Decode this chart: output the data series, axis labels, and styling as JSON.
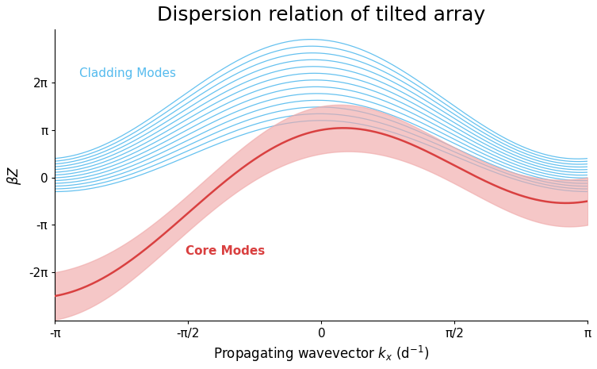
{
  "title": "Dispersion relation of tilted array",
  "xlabel": "Propagating wavevector $k_x$ (d$^{-1}$)",
  "ylabel": "$\\beta Z$",
  "xlim": [
    -3.14159265,
    3.14159265
  ],
  "ylim": [
    -9.5,
    9.8
  ],
  "yticks": [
    -6.2831853,
    -3.14159265,
    0,
    3.14159265,
    6.2831853
  ],
  "ytick_labels": [
    "-2π",
    "-π",
    "0",
    "π",
    "2π"
  ],
  "xticks": [
    -3.14159265,
    -1.5707963,
    0,
    1.5707963,
    3.14159265
  ],
  "xtick_labels": [
    "-π",
    "-π/2",
    "0",
    "π/2",
    "π"
  ],
  "core_color": "#d94040",
  "core_fill_color": "#f0aaaa",
  "cladding_color": "#55bbee",
  "background_color": "#ffffff",
  "title_fontsize": 18,
  "label_fontsize": 12,
  "tick_fontsize": 11,
  "legend_cladding": "Cladding Modes",
  "legend_core": "Core Modes",
  "n_cladding": 13
}
